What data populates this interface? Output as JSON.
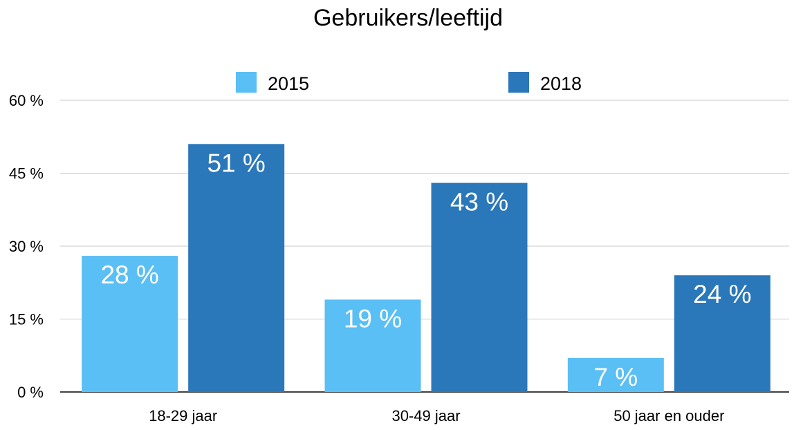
{
  "chart_data": {
    "type": "bar",
    "title": "Gebruikers/leeftijd",
    "xlabel": "",
    "ylabel": "",
    "categories": [
      "18-29 jaar",
      "30-49 jaar",
      "50 jaar en ouder"
    ],
    "series": [
      {
        "name": "2015",
        "values": [
          28,
          19,
          7
        ],
        "labels": [
          "28 %",
          "19 %",
          "7 %"
        ],
        "color": "#5ABFF5"
      },
      {
        "name": "2018",
        "values": [
          51,
          43,
          24
        ],
        "labels": [
          "51 %",
          "43 %",
          "24 %"
        ],
        "color": "#2A77BA"
      }
    ],
    "ylim": [
      0,
      60
    ],
    "yticks": [
      0,
      15,
      30,
      45,
      60
    ],
    "ytick_labels": [
      "0 %",
      "15 %",
      "30 %",
      "45 %",
      "60 %"
    ],
    "grid": true,
    "legend_position": "top"
  }
}
